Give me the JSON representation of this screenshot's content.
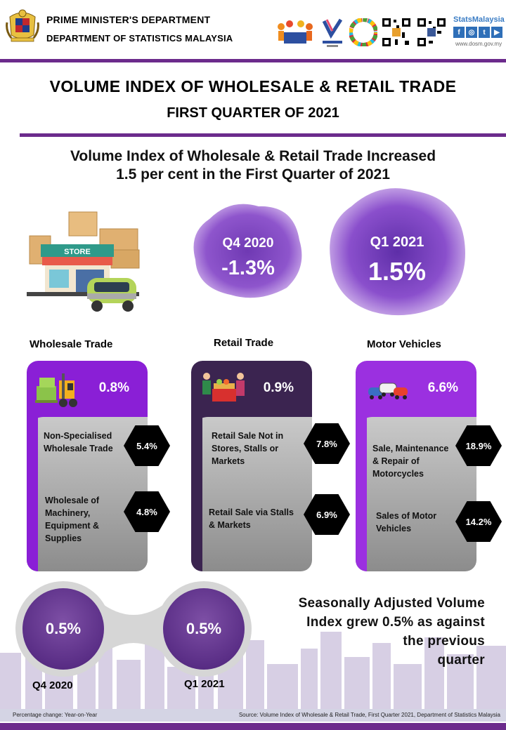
{
  "header": {
    "org_line1": "PRIME MINISTER'S DEPARTMENT",
    "org_line2": "DEPARTMENT OF STATISTICS  MALAYSIA",
    "brand": "StatsMalaysia",
    "website": "www.dosm.gov.my",
    "social_icons": [
      "facebook-icon",
      "instagram-icon",
      "twitter-icon",
      "youtube-icon"
    ]
  },
  "title": {
    "line1": "VOLUME INDEX OF WHOLESALE & RETAIL TRADE",
    "line2": "FIRST QUARTER OF 2021"
  },
  "headline": {
    "line1": "Volume Index of Wholesale & Retail Trade Increased",
    "line2": "1.5 per cent in the First Quarter of 2021"
  },
  "quarters": {
    "q4": {
      "label": "Q4 2020",
      "value": "-1.3%"
    },
    "q1": {
      "label": "Q1 2021",
      "value": "1.5%"
    }
  },
  "sectors": [
    {
      "title": "Wholesale Trade",
      "value": "0.8%",
      "color": "#8a1fd6",
      "items": [
        {
          "label": [
            "Non-Specialised",
            "Wholesale Trade"
          ],
          "value": "5.4%"
        },
        {
          "label": [
            "Wholesale of",
            "Machinery,",
            "Equipment &",
            "Supplies"
          ],
          "value": "4.8%"
        }
      ]
    },
    {
      "title": "Retail Trade",
      "value": "0.9%",
      "color": "#3b2450",
      "items": [
        {
          "label": [
            "Retail Sale Not in",
            "Stores, Stalls or",
            "Markets"
          ],
          "value": "7.8%"
        },
        {
          "label": [
            "Retail Sale via Stalls",
            "& Markets"
          ],
          "value": "6.9%"
        }
      ]
    },
    {
      "title": "Motor Vehicles",
      "value": "6.6%",
      "color": "#9b30e0",
      "items": [
        {
          "label": [
            "Sale, Maintenance",
            "& Repair of",
            "Motorcycles"
          ],
          "value": "18.9%"
        },
        {
          "label": [
            "Sales of Motor",
            "Vehicles"
          ],
          "value": "14.2%"
        }
      ]
    }
  ],
  "seasonal": {
    "q4": {
      "label": "Q4 2020",
      "value": "0.5%"
    },
    "q1": {
      "label": "Q1 2021",
      "value": "0.5%"
    },
    "text": [
      "Seasonally Adjusted Volume",
      "Index grew 0.5% as against",
      "the previous",
      "quarter"
    ]
  },
  "footer": {
    "left": "Percentage change: Year-on-Year",
    "right": "Source: Volume Index of Wholesale & Retail Trade, First Quarter 2021, Department of Statistics Malaysia"
  },
  "colors": {
    "accent_purple": "#6c2b8c",
    "blob_purple": "#8b4ec9"
  }
}
